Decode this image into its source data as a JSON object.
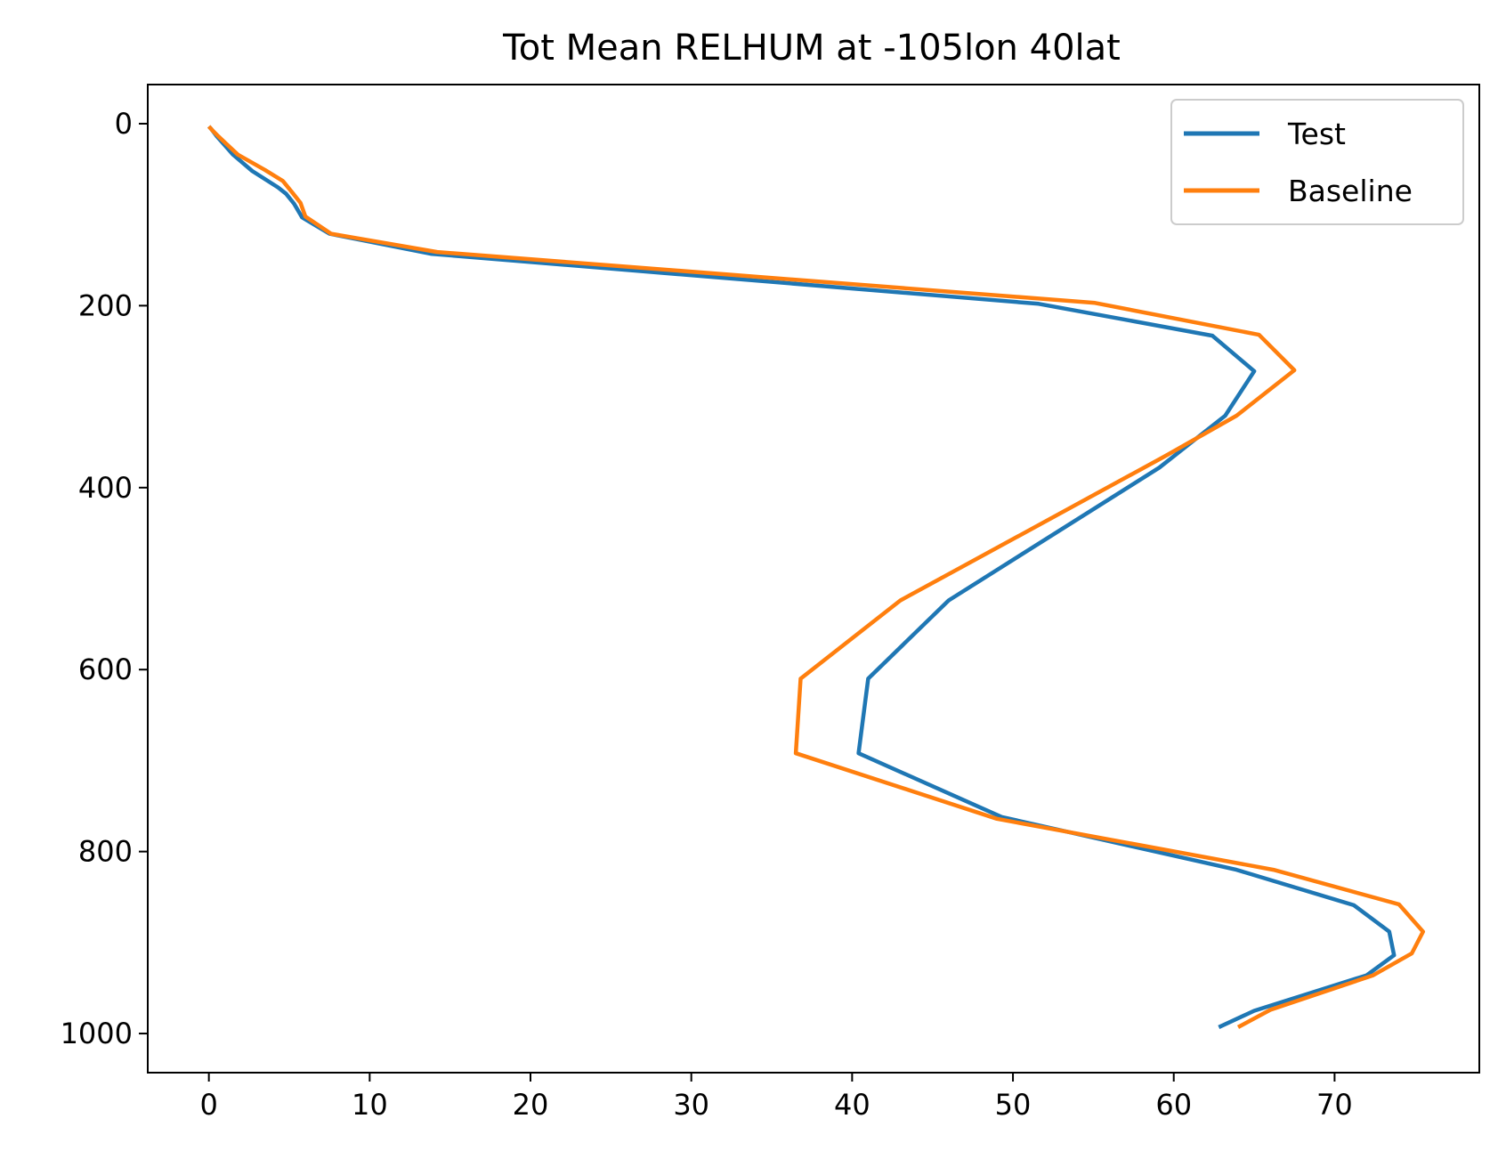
{
  "chart_data": {
    "type": "line",
    "title": "Tot Mean RELHUM at -105lon 40lat",
    "xlabel": "",
    "ylabel": "",
    "xlim": [
      -3.8,
      79
    ],
    "ylim": [
      1043,
      -43
    ],
    "y_inverted": true,
    "x_ticks": [
      0,
      10,
      20,
      30,
      40,
      50,
      60,
      70
    ],
    "y_ticks": [
      0,
      200,
      400,
      600,
      800,
      1000
    ],
    "x_tick_labels": [
      "0",
      "10",
      "20",
      "30",
      "40",
      "50",
      "60",
      "70"
    ],
    "y_tick_labels": [
      "0",
      "200",
      "400",
      "600",
      "800",
      "1000"
    ],
    "grid": false,
    "legend_position": "upper right",
    "series": [
      {
        "name": "Test",
        "color": "#1f77b4",
        "points": [
          [
            0.0,
            3
          ],
          [
            0.2,
            7
          ],
          [
            0.5,
            14
          ],
          [
            1.5,
            34
          ],
          [
            2.7,
            52
          ],
          [
            4.3,
            70
          ],
          [
            4.8,
            77
          ],
          [
            5.3,
            88
          ],
          [
            5.8,
            103
          ],
          [
            7.5,
            121
          ],
          [
            13.8,
            143
          ],
          [
            51.6,
            198
          ],
          [
            62.4,
            233
          ],
          [
            65.0,
            272
          ],
          [
            63.2,
            321
          ],
          [
            59.1,
            378
          ],
          [
            46.0,
            524
          ],
          [
            41.0,
            610
          ],
          [
            40.4,
            692
          ],
          [
            49.3,
            762
          ],
          [
            63.9,
            820
          ],
          [
            71.2,
            859
          ],
          [
            73.4,
            888
          ],
          [
            73.7,
            914
          ],
          [
            72.0,
            936
          ],
          [
            65.0,
            975
          ],
          [
            62.8,
            993
          ]
        ]
      },
      {
        "name": "Baseline",
        "color": "#ff7f0e",
        "points": [
          [
            0.0,
            3
          ],
          [
            0.2,
            7
          ],
          [
            0.6,
            14
          ],
          [
            1.8,
            34
          ],
          [
            3.5,
            51
          ],
          [
            4.6,
            63
          ],
          [
            5.2,
            76
          ],
          [
            5.7,
            87
          ],
          [
            6.0,
            102
          ],
          [
            7.6,
            121
          ],
          [
            14.2,
            141
          ],
          [
            55.1,
            197
          ],
          [
            65.3,
            232
          ],
          [
            67.5,
            271
          ],
          [
            63.9,
            321
          ],
          [
            59.4,
            366
          ],
          [
            43.0,
            524
          ],
          [
            36.8,
            610
          ],
          [
            36.5,
            692
          ],
          [
            49.0,
            764
          ],
          [
            66.2,
            820
          ],
          [
            74.0,
            858
          ],
          [
            75.5,
            888
          ],
          [
            74.8,
            912
          ],
          [
            72.4,
            936
          ],
          [
            66.0,
            974
          ],
          [
            64.0,
            993
          ]
        ]
      }
    ]
  }
}
